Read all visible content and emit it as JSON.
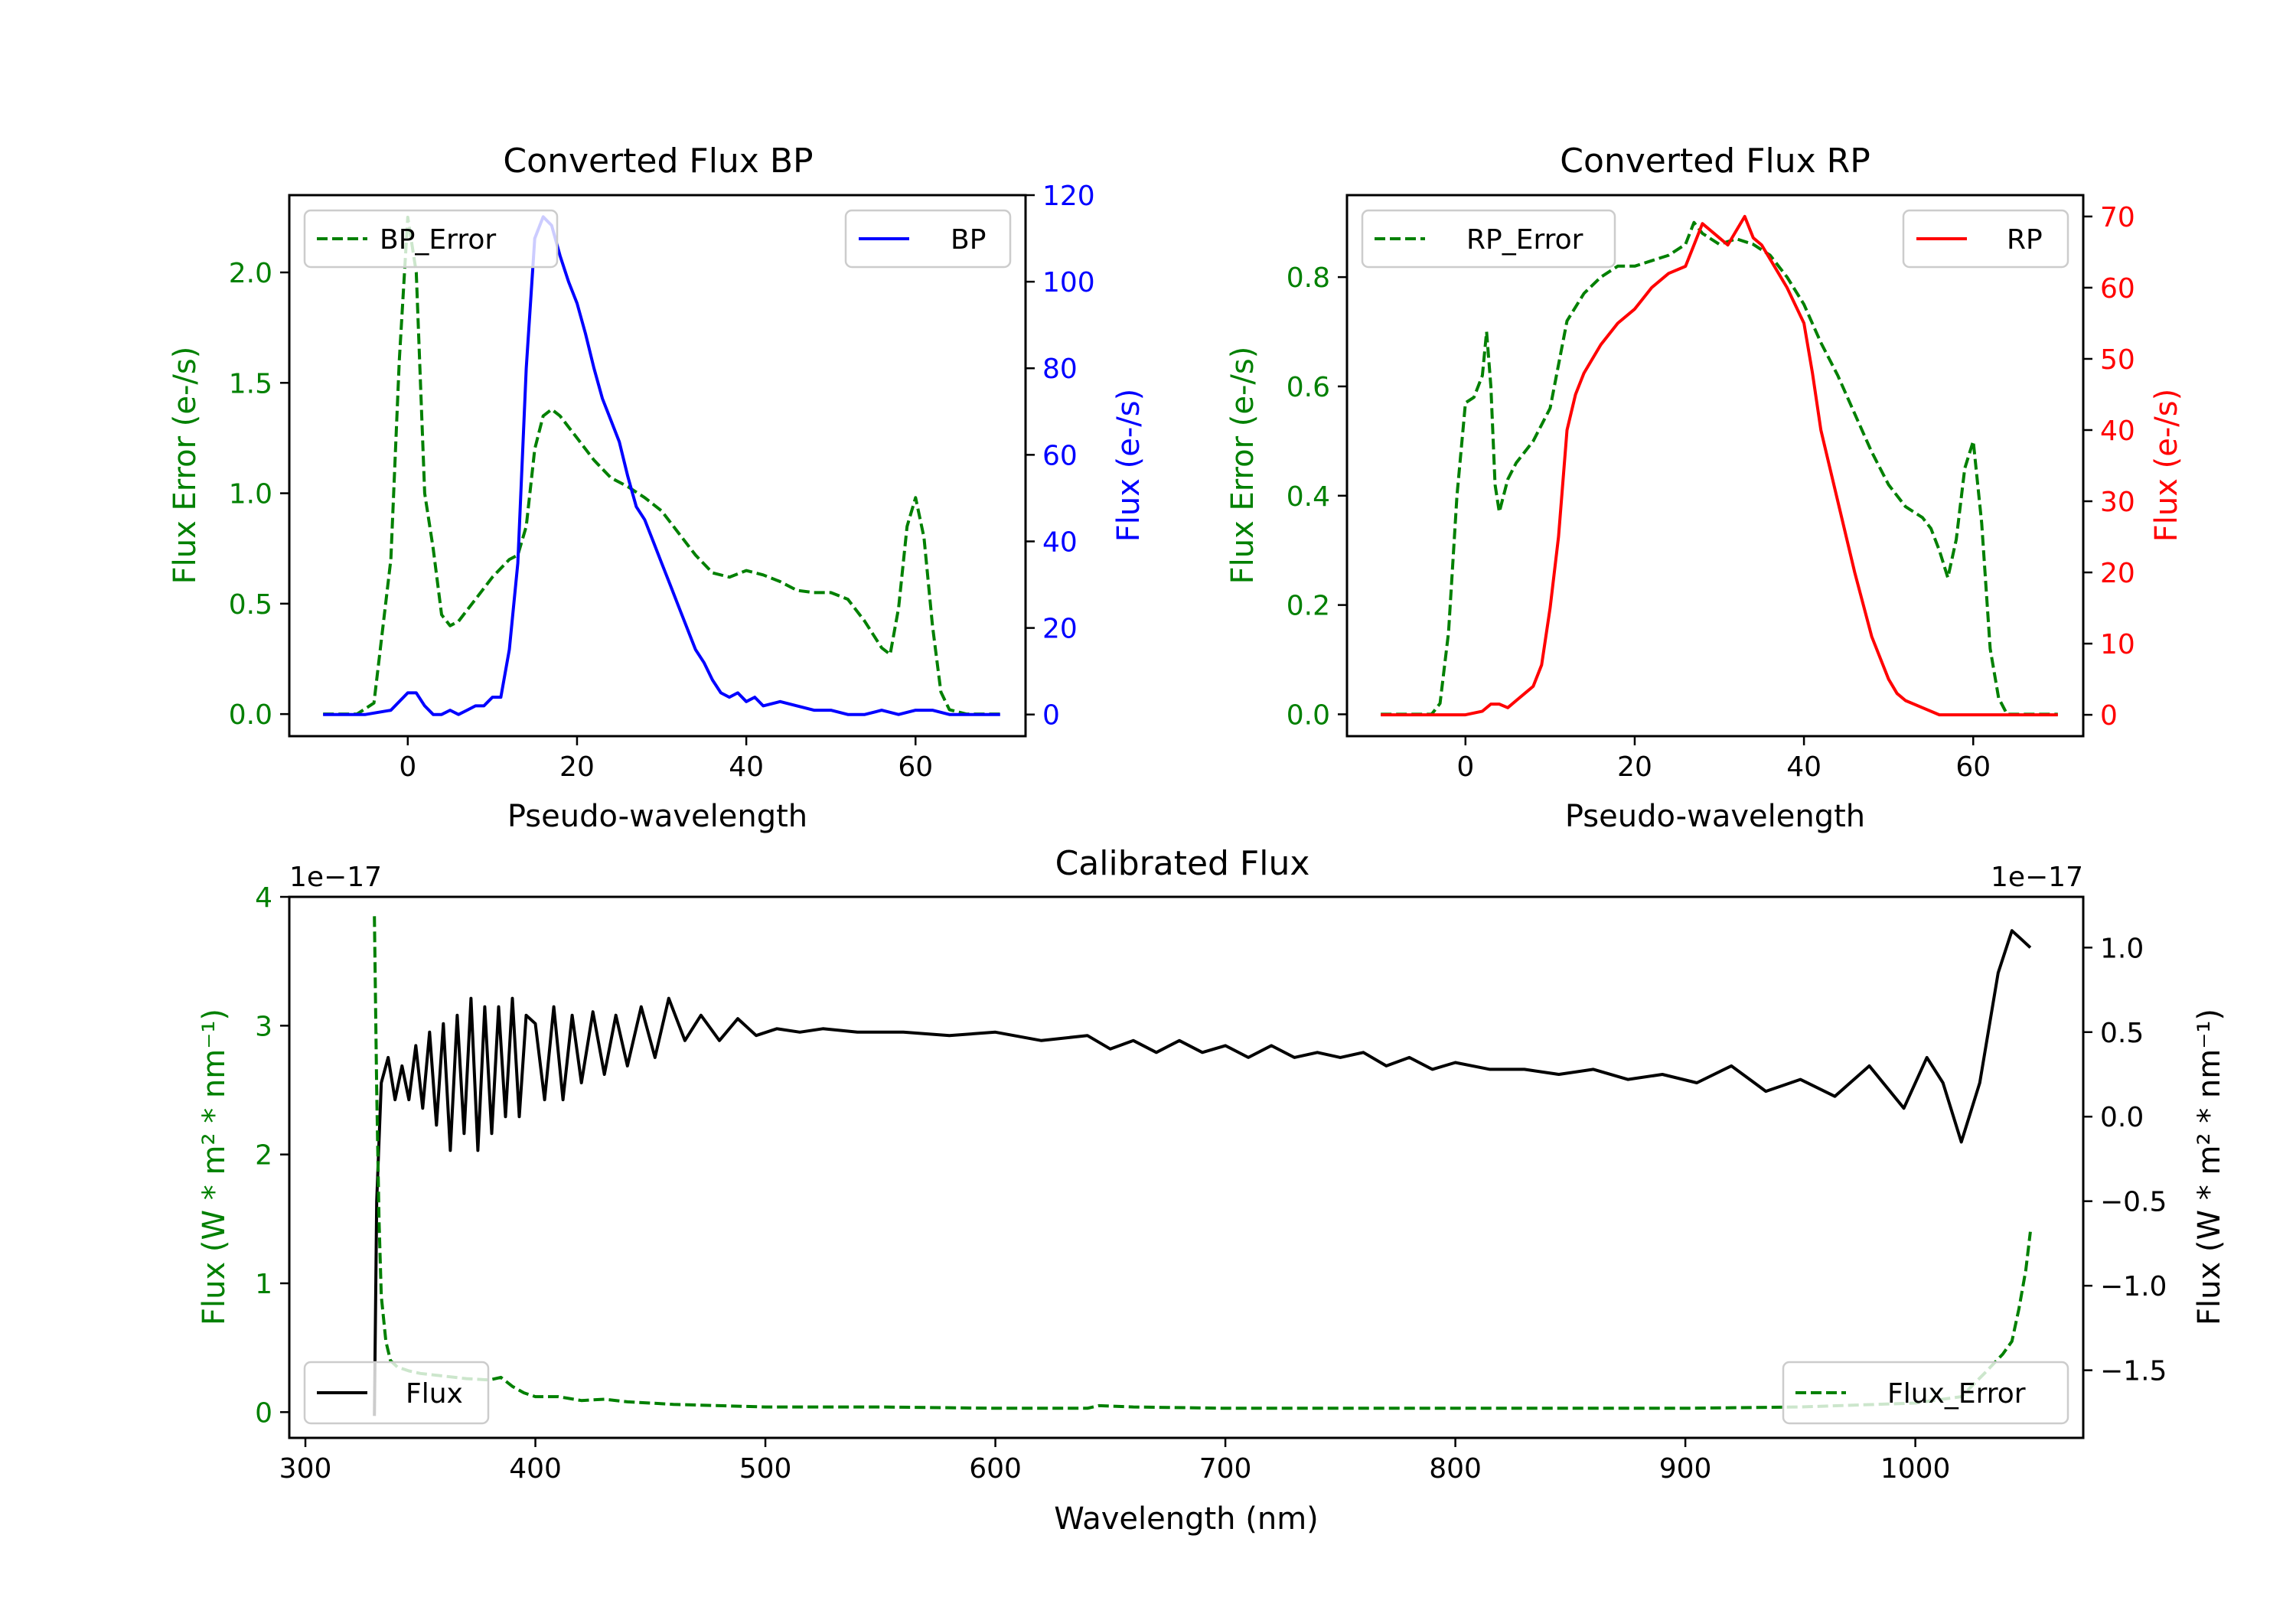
{
  "colors": {
    "bp": "#0000ff",
    "rp": "#ff0000",
    "error": "#008000",
    "flux": "#000000"
  },
  "chart_data": [
    {
      "id": "bp",
      "type": "line",
      "title": "Converted Flux BP",
      "xlabel": "Pseudo-wavelength",
      "ylabel_left": "Flux Error (e-/s)",
      "ylabel_right": "Flux (e-/s)",
      "xlim": [
        -14,
        73
      ],
      "ylim_left": [
        -0.1,
        2.35
      ],
      "ylim_right": [
        -5,
        120
      ],
      "xticks": [
        "0",
        "20",
        "40",
        "60"
      ],
      "yticks_left": [
        "0.0",
        "0.5",
        "1.0",
        "1.5",
        "2.0"
      ],
      "yticks_right": [
        "0",
        "20",
        "40",
        "60",
        "80",
        "100",
        "120"
      ],
      "legend_left": "BP_Error",
      "legend_right": "BP",
      "series": [
        {
          "name": "BP_Error",
          "axis": "left",
          "color": "error",
          "dashed": true,
          "x": [
            -10,
            -6,
            -4,
            -2,
            -1,
            0,
            1,
            2,
            3,
            4,
            5,
            6,
            8,
            10,
            12,
            13,
            14,
            15,
            16,
            17,
            18,
            20,
            22,
            24,
            26,
            28,
            30,
            32,
            34,
            36,
            38,
            40,
            42,
            44,
            46,
            48,
            50,
            52,
            54,
            56,
            57,
            58,
            59,
            60,
            61,
            62,
            63,
            64,
            66,
            70
          ],
          "y": [
            0.0,
            0.0,
            0.05,
            0.7,
            1.6,
            2.25,
            2.0,
            1.0,
            0.75,
            0.45,
            0.4,
            0.42,
            0.52,
            0.62,
            0.7,
            0.72,
            0.85,
            1.2,
            1.35,
            1.38,
            1.35,
            1.25,
            1.15,
            1.07,
            1.03,
            0.98,
            0.92,
            0.82,
            0.72,
            0.64,
            0.62,
            0.65,
            0.63,
            0.6,
            0.56,
            0.55,
            0.55,
            0.52,
            0.42,
            0.3,
            0.27,
            0.48,
            0.85,
            0.98,
            0.8,
            0.4,
            0.1,
            0.02,
            0.0,
            0.0
          ]
        },
        {
          "name": "BP",
          "axis": "right",
          "color": "bp",
          "dashed": false,
          "x": [
            -10,
            -5,
            -2,
            0,
            1,
            2,
            3,
            4,
            5,
            6,
            7,
            8,
            9,
            10,
            11,
            12,
            13,
            14,
            15,
            16,
            17,
            18,
            19,
            20,
            21,
            22,
            23,
            24,
            25,
            26,
            27,
            28,
            29,
            30,
            31,
            32,
            33,
            34,
            35,
            36,
            37,
            38,
            39,
            40,
            41,
            42,
            44,
            46,
            48,
            50,
            52,
            54,
            56,
            58,
            60,
            62,
            64,
            66,
            70
          ],
          "y": [
            0,
            0,
            1,
            5,
            5,
            2,
            0,
            0,
            1,
            0,
            1,
            2,
            2,
            4,
            4,
            15,
            35,
            80,
            110,
            115,
            113,
            106,
            100,
            95,
            88,
            80,
            73,
            68,
            63,
            55,
            48,
            45,
            40,
            35,
            30,
            25,
            20,
            15,
            12,
            8,
            5,
            4,
            5,
            3,
            4,
            2,
            3,
            2,
            1,
            1,
            0,
            0,
            1,
            0,
            1,
            1,
            0,
            0,
            0
          ]
        }
      ]
    },
    {
      "id": "rp",
      "type": "line",
      "title": "Converted Flux RP",
      "xlabel": "Pseudo-wavelength",
      "ylabel_left": "Flux Error (e-/s)",
      "ylabel_right": "Flux (e-/s)",
      "xlim": [
        -14,
        73
      ],
      "ylim_left": [
        -0.04,
        0.95
      ],
      "ylim_right": [
        -3,
        73
      ],
      "xticks": [
        "0",
        "20",
        "40",
        "60"
      ],
      "yticks_left": [
        "0.0",
        "0.2",
        "0.4",
        "0.6",
        "0.8"
      ],
      "yticks_right": [
        "0",
        "10",
        "20",
        "30",
        "40",
        "50",
        "60",
        "70"
      ],
      "legend_left": "RP_Error",
      "legend_right": "RP",
      "series": [
        {
          "name": "RP_Error",
          "axis": "left",
          "color": "error",
          "dashed": true,
          "x": [
            -10,
            -4,
            -3,
            -2,
            -1,
            0,
            1,
            2,
            2.5,
            3,
            3.5,
            4,
            5,
            6,
            8,
            10,
            12,
            14,
            16,
            18,
            20,
            22,
            24,
            26,
            27,
            28,
            30,
            32,
            34,
            36,
            38,
            40,
            42,
            44,
            46,
            48,
            50,
            52,
            54,
            55,
            56,
            57,
            58,
            59,
            60,
            61,
            62,
            63,
            64,
            66,
            70
          ],
          "y": [
            0.0,
            0.0,
            0.02,
            0.15,
            0.4,
            0.57,
            0.58,
            0.62,
            0.7,
            0.6,
            0.42,
            0.37,
            0.43,
            0.46,
            0.5,
            0.56,
            0.72,
            0.77,
            0.8,
            0.82,
            0.82,
            0.83,
            0.84,
            0.86,
            0.9,
            0.88,
            0.86,
            0.87,
            0.86,
            0.84,
            0.8,
            0.75,
            0.68,
            0.62,
            0.55,
            0.48,
            0.42,
            0.38,
            0.36,
            0.34,
            0.3,
            0.25,
            0.32,
            0.45,
            0.5,
            0.35,
            0.12,
            0.03,
            0.0,
            0.0,
            0.0
          ]
        },
        {
          "name": "RP",
          "axis": "right",
          "color": "rp",
          "dashed": false,
          "x": [
            -10,
            -4,
            0,
            2,
            3,
            4,
            5,
            6,
            7,
            8,
            9,
            10,
            11,
            12,
            13,
            14,
            16,
            18,
            20,
            22,
            24,
            26,
            27,
            28,
            29,
            30,
            31,
            32,
            33,
            34,
            35,
            36,
            38,
            40,
            41,
            42,
            44,
            46,
            48,
            50,
            51,
            52,
            54,
            56,
            58,
            60,
            62,
            64,
            66,
            70
          ],
          "y": [
            0,
            0,
            0,
            0.5,
            1.5,
            1.5,
            1,
            2,
            3,
            4,
            7,
            15,
            25,
            40,
            45,
            48,
            52,
            55,
            57,
            60,
            62,
            63,
            66,
            69,
            68,
            67,
            66,
            68,
            70,
            67,
            66,
            64,
            60,
            55,
            48,
            40,
            30,
            20,
            11,
            5,
            3,
            2,
            1,
            0,
            0,
            0,
            0,
            0,
            0,
            0
          ]
        }
      ]
    },
    {
      "id": "calibrated",
      "type": "line",
      "title": "Calibrated Flux",
      "xlabel": "Wavelength (nm)",
      "ylabel_left": "Flux (W * m² * nm⁻¹)",
      "ylabel_right": "Flux (W * m² * nm⁻¹)",
      "offset_left": "1e−17",
      "offset_right": "1e−17",
      "xlim": [
        293,
        1073
      ],
      "ylim_left": [
        -0.2,
        4.0
      ],
      "ylim_right": [
        -1.9,
        1.3
      ],
      "xticks": [
        "300",
        "400",
        "500",
        "600",
        "700",
        "800",
        "900",
        "1000"
      ],
      "yticks_left": [
        "0",
        "1",
        "2",
        "3",
        "4"
      ],
      "yticks_right": [
        "1.0",
        "0.5",
        "0.0",
        "−0.5",
        "−1.0",
        "−1.5"
      ],
      "legend_left": "Flux",
      "legend_right": "Flux_Error",
      "series": [
        {
          "name": "Flux",
          "axis": "right",
          "color": "flux",
          "dashed": false,
          "x": [
            330,
            331,
            333,
            336,
            339,
            342,
            345,
            348,
            351,
            354,
            357,
            360,
            363,
            366,
            369,
            372,
            375,
            378,
            381,
            384,
            387,
            390,
            393,
            396,
            400,
            404,
            408,
            412,
            416,
            420,
            425,
            430,
            435,
            440,
            446,
            452,
            458,
            465,
            472,
            480,
            488,
            496,
            505,
            515,
            525,
            540,
            560,
            580,
            600,
            620,
            640,
            650,
            660,
            670,
            680,
            690,
            700,
            710,
            720,
            730,
            740,
            750,
            760,
            770,
            780,
            790,
            800,
            815,
            830,
            845,
            860,
            875,
            890,
            905,
            920,
            935,
            950,
            965,
            980,
            995,
            1005,
            1012,
            1020,
            1028,
            1036,
            1042,
            1046,
            1050
          ],
          "y": [
            -1.77,
            -0.5,
            0.2,
            0.35,
            0.1,
            0.3,
            0.1,
            0.42,
            0.05,
            0.5,
            -0.05,
            0.55,
            -0.2,
            0.6,
            -0.1,
            0.7,
            -0.2,
            0.65,
            -0.1,
            0.65,
            0.0,
            0.7,
            0.0,
            0.6,
            0.55,
            0.1,
            0.65,
            0.1,
            0.6,
            0.2,
            0.62,
            0.25,
            0.6,
            0.3,
            0.65,
            0.35,
            0.7,
            0.45,
            0.6,
            0.45,
            0.58,
            0.48,
            0.52,
            0.5,
            0.52,
            0.5,
            0.5,
            0.48,
            0.5,
            0.45,
            0.48,
            0.4,
            0.45,
            0.38,
            0.45,
            0.38,
            0.42,
            0.35,
            0.42,
            0.35,
            0.38,
            0.35,
            0.38,
            0.3,
            0.35,
            0.28,
            0.32,
            0.28,
            0.28,
            0.25,
            0.28,
            0.22,
            0.25,
            0.2,
            0.3,
            0.15,
            0.22,
            0.12,
            0.3,
            0.05,
            0.35,
            0.2,
            -0.15,
            0.2,
            0.85,
            1.1,
            1.05,
            1.0
          ]
        },
        {
          "name": "Flux_Error",
          "axis": "left",
          "color": "error",
          "dashed": true,
          "x": [
            330,
            331,
            332,
            333,
            335,
            337,
            340,
            345,
            350,
            360,
            370,
            380,
            385,
            390,
            395,
            400,
            410,
            420,
            430,
            440,
            450,
            460,
            480,
            500,
            550,
            600,
            640,
            645,
            660,
            700,
            750,
            800,
            850,
            900,
            950,
            1000,
            1020,
            1030,
            1038,
            1042,
            1045,
            1048,
            1050
          ],
          "y": [
            3.85,
            2.5,
            1.5,
            0.9,
            0.55,
            0.4,
            0.35,
            0.32,
            0.3,
            0.28,
            0.26,
            0.25,
            0.27,
            0.2,
            0.15,
            0.12,
            0.12,
            0.09,
            0.1,
            0.08,
            0.07,
            0.06,
            0.05,
            0.04,
            0.04,
            0.03,
            0.03,
            0.05,
            0.04,
            0.03,
            0.03,
            0.03,
            0.03,
            0.03,
            0.04,
            0.07,
            0.12,
            0.3,
            0.45,
            0.55,
            0.8,
            1.1,
            1.4
          ]
        }
      ]
    }
  ]
}
